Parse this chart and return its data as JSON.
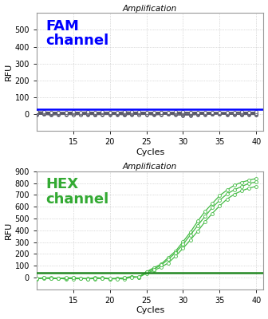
{
  "title": "Amplification",
  "xlabel": "Cycles",
  "ylabel": "RFU",
  "fam_ylim": [
    -100,
    600
  ],
  "fam_yticks": [
    0,
    100,
    200,
    300,
    400,
    500
  ],
  "hex_ylim": [
    -100,
    900
  ],
  "hex_yticks": [
    0,
    100,
    200,
    300,
    400,
    500,
    600,
    700,
    800,
    900
  ],
  "xlim": [
    10,
    41
  ],
  "xticks": [
    15,
    20,
    25,
    30,
    35,
    40
  ],
  "fam_label": "FAM\nchannel",
  "hex_label": "HEX\nchannel",
  "fam_color": "#0000FF",
  "hex_color": "#33AA33",
  "fam_threshold": 28,
  "hex_threshold": 42,
  "background_color": "#ffffff",
  "grid_color": "#bbbbbb",
  "title_fontsize": 7.5,
  "axis_label_fontsize": 8,
  "tick_fontsize": 7,
  "channel_label_fontsize": 13,
  "fam_data_color": "#555566",
  "hex_line_color": "#44BB44"
}
